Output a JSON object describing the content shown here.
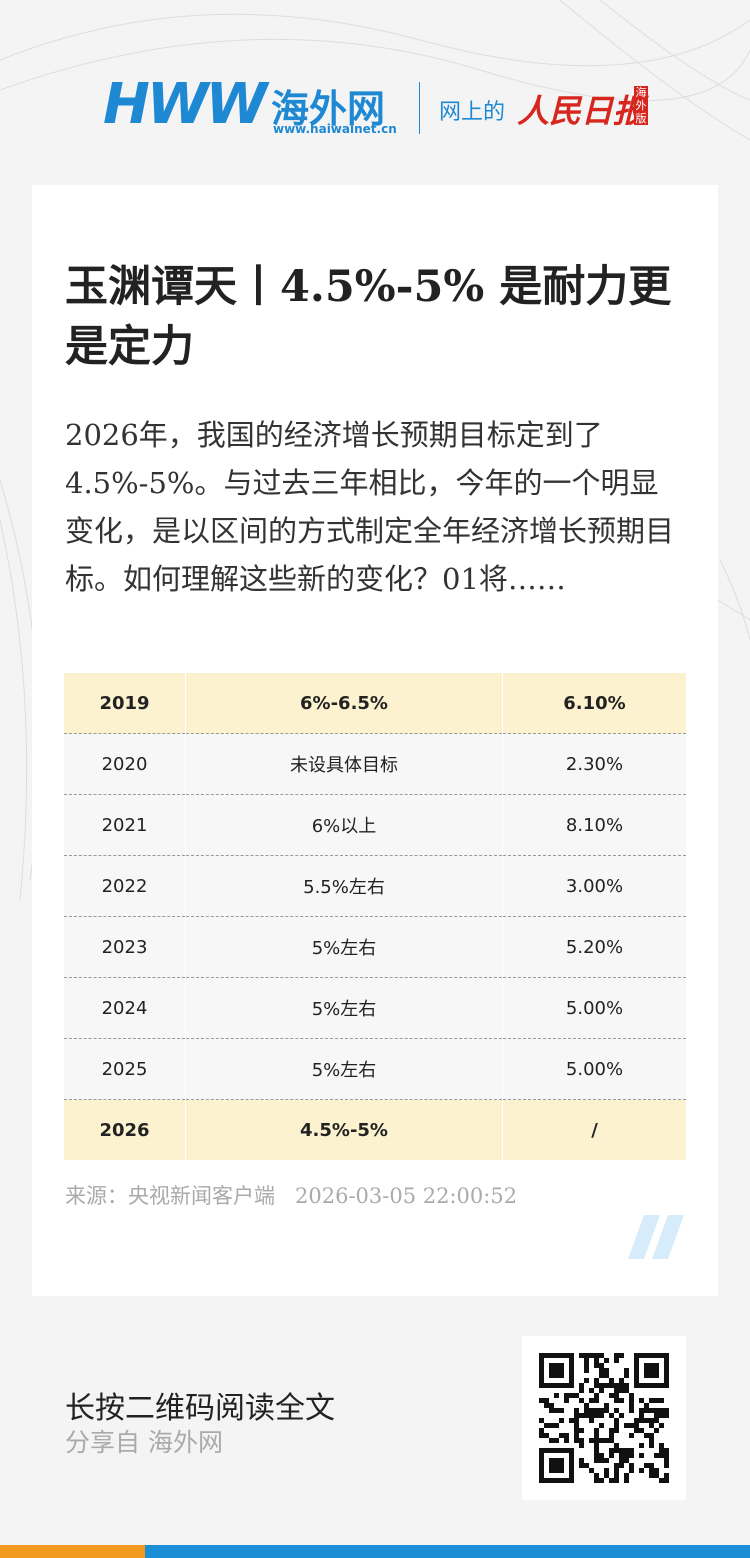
{
  "header": {
    "logo_letters": "HWW",
    "logo_name": "海外网",
    "logo_url": "www.haiwainet.cn",
    "tagline": "网上的",
    "paper": "人民日报",
    "edition": "海外版"
  },
  "article": {
    "title": "玉渊谭天丨4.5%-5% 是耐力更是定力",
    "summary": "2026年，我国的经济增长预期目标定到了4.5%-5%。与过去三年相比，今年的一个明显变化，是以区间的方式制定全年经济增长预期目标。如何理解这些新的变化？01将……",
    "source": "来源：央视新闻客户端",
    "datetime": "2026-03-05 22:00:52"
  },
  "table": {
    "rows": [
      [
        "2019",
        "6%-6.5%",
        "6.10%"
      ],
      [
        "2020",
        "未设具体目标",
        "2.30%"
      ],
      [
        "2021",
        "6%以上",
        "8.10%"
      ],
      [
        "2022",
        "5.5%左右",
        "3.00%"
      ],
      [
        "2023",
        "5%左右",
        "5.20%"
      ],
      [
        "2024",
        "5%左右",
        "5.00%"
      ],
      [
        "2025",
        "5%左右",
        "5.00%"
      ],
      [
        "2026",
        "4.5%-5%",
        "/"
      ]
    ]
  },
  "footer": {
    "prompt": "长按二维码阅读全文",
    "shared_from": "分享自 海外网"
  }
}
